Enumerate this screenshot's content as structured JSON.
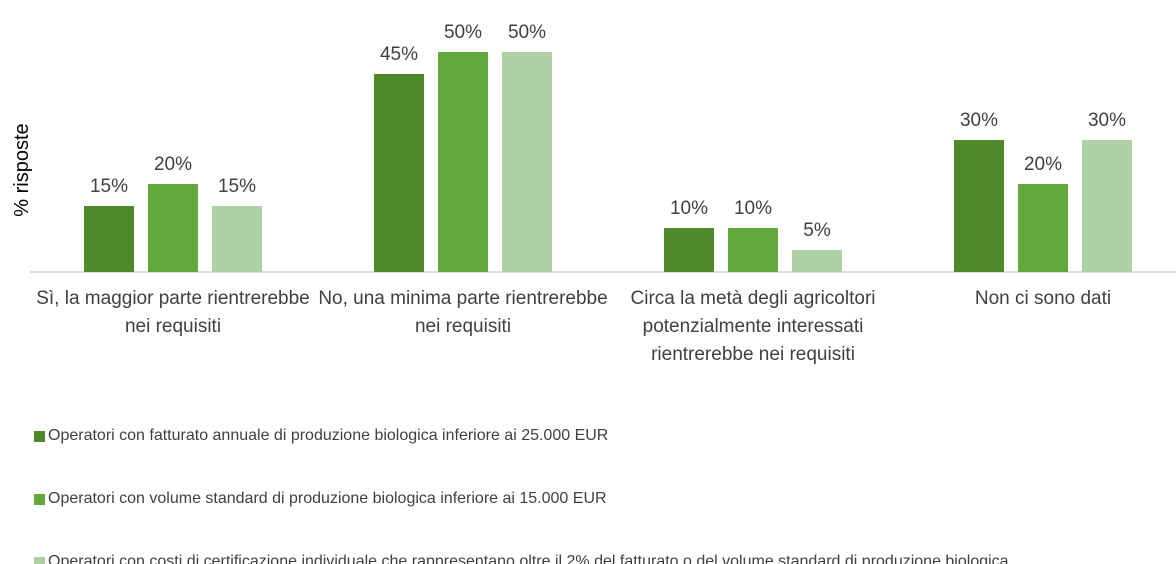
{
  "chart_data": {
    "type": "bar",
    "y_label": "% risposte",
    "categories": [
      "Sì, la maggior parte rientrerebbe nei requisiti",
      "No, una minima parte rientrerebbe nei requisiti",
      "Circa la metà degli agricoltori potenzialmente interessati rientrerebbe nei requisiti",
      "Non ci sono dati"
    ],
    "series": [
      {
        "name": "Operatori con fatturato annuale  di produzione biologica inferiore ai  25.000 EUR",
        "color": "#4e8a2b",
        "values": [
          15,
          45,
          10,
          30
        ],
        "value_labels": [
          "15%",
          "45%",
          "10%",
          "30%"
        ]
      },
      {
        "name": "Operatori con volume standard di produzione biologica inferiore ai 15.000 EUR",
        "color": "#62a83a",
        "values": [
          20,
          50,
          10,
          20
        ],
        "value_labels": [
          "20%",
          "50%",
          "10%",
          "20%"
        ]
      },
      {
        "name": "Operatori con costi di certificazione individuale che rappresentano oltre il 2% del fatturato o del volume standard di produzione biologica",
        "color": "#afcfa5",
        "values": [
          15,
          50,
          5,
          30
        ],
        "value_labels": [
          "15%",
          "50%",
          "5%",
          "30%"
        ]
      }
    ],
    "ylim": [
      0,
      50
    ]
  }
}
